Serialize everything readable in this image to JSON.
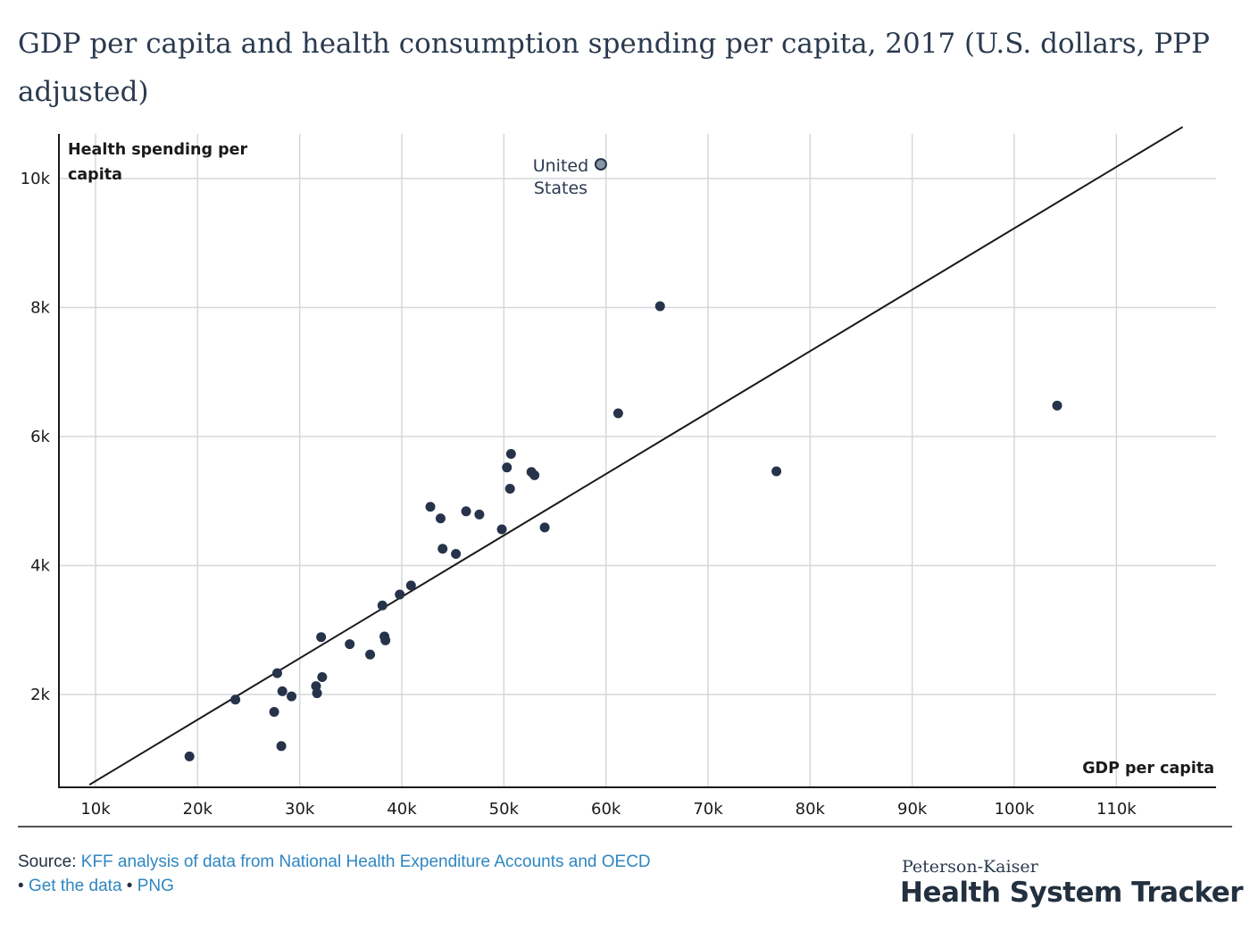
{
  "title": "GDP per capita and health consumption spending per capita, 2017 (U.S. dollars, PPP adjusted)",
  "chart_data": {
    "type": "scatter",
    "title": "GDP per capita and health consumption spending per capita, 2017 (U.S. dollars, PPP adjusted)",
    "xlabel": "GDP per capita",
    "ylabel": "Health spending per capita",
    "xlim": [
      10000,
      115000
    ],
    "ylim": [
      0,
      10500
    ],
    "x_ticks": [
      10000,
      20000,
      30000,
      40000,
      50000,
      60000,
      70000,
      80000,
      90000,
      100000,
      110000
    ],
    "x_tick_labels": [
      "10k",
      "20k",
      "30k",
      "40k",
      "50k",
      "60k",
      "70k",
      "80k",
      "90k",
      "100k",
      "110k"
    ],
    "y_ticks": [
      2000,
      4000,
      6000,
      8000,
      10000
    ],
    "y_tick_labels": [
      "2k",
      "4k",
      "6k",
      "8k",
      "10k"
    ],
    "grid": true,
    "colors": {
      "point": "#26334a",
      "highlight_fill": "#8895a4",
      "grid": "#d4d8dc",
      "line": "#1a1a1a"
    },
    "trendline": [
      [
        9400,
        600
      ],
      [
        116500,
        10800
      ]
    ],
    "annotation": {
      "label": [
        "United",
        "States"
      ],
      "point": [
        59500,
        10220
      ]
    },
    "points": [
      [
        19200,
        1040
      ],
      [
        23700,
        1920
      ],
      [
        27500,
        1730
      ],
      [
        27800,
        2330
      ],
      [
        28200,
        1200
      ],
      [
        28300,
        2050
      ],
      [
        29200,
        1970
      ],
      [
        31600,
        2130
      ],
      [
        31700,
        2020
      ],
      [
        32100,
        2890
      ],
      [
        32200,
        2270
      ],
      [
        34900,
        2780
      ],
      [
        36900,
        2620
      ],
      [
        38100,
        3380
      ],
      [
        38300,
        2900
      ],
      [
        38400,
        2840
      ],
      [
        39800,
        3550
      ],
      [
        40900,
        3690
      ],
      [
        42800,
        4910
      ],
      [
        43800,
        4730
      ],
      [
        44000,
        4260
      ],
      [
        45300,
        4180
      ],
      [
        46300,
        4840
      ],
      [
        47600,
        4790
      ],
      [
        49800,
        4560
      ],
      [
        50300,
        5520
      ],
      [
        50600,
        5190
      ],
      [
        50700,
        5730
      ],
      [
        52700,
        5450
      ],
      [
        53000,
        5400
      ],
      [
        54000,
        4590
      ],
      [
        59500,
        10220
      ],
      [
        61200,
        6360
      ],
      [
        65300,
        8020
      ],
      [
        76700,
        5460
      ],
      [
        104200,
        6480
      ]
    ]
  },
  "footer": {
    "source_label": "Source:",
    "source_link": "KFF analysis of data from National Health Expenditure Accounts and OECD",
    "bullet": "•",
    "get_data": "Get the data",
    "png": "PNG"
  },
  "brand": {
    "small": "Peterson-Kaiser",
    "big": "Health System Tracker"
  }
}
